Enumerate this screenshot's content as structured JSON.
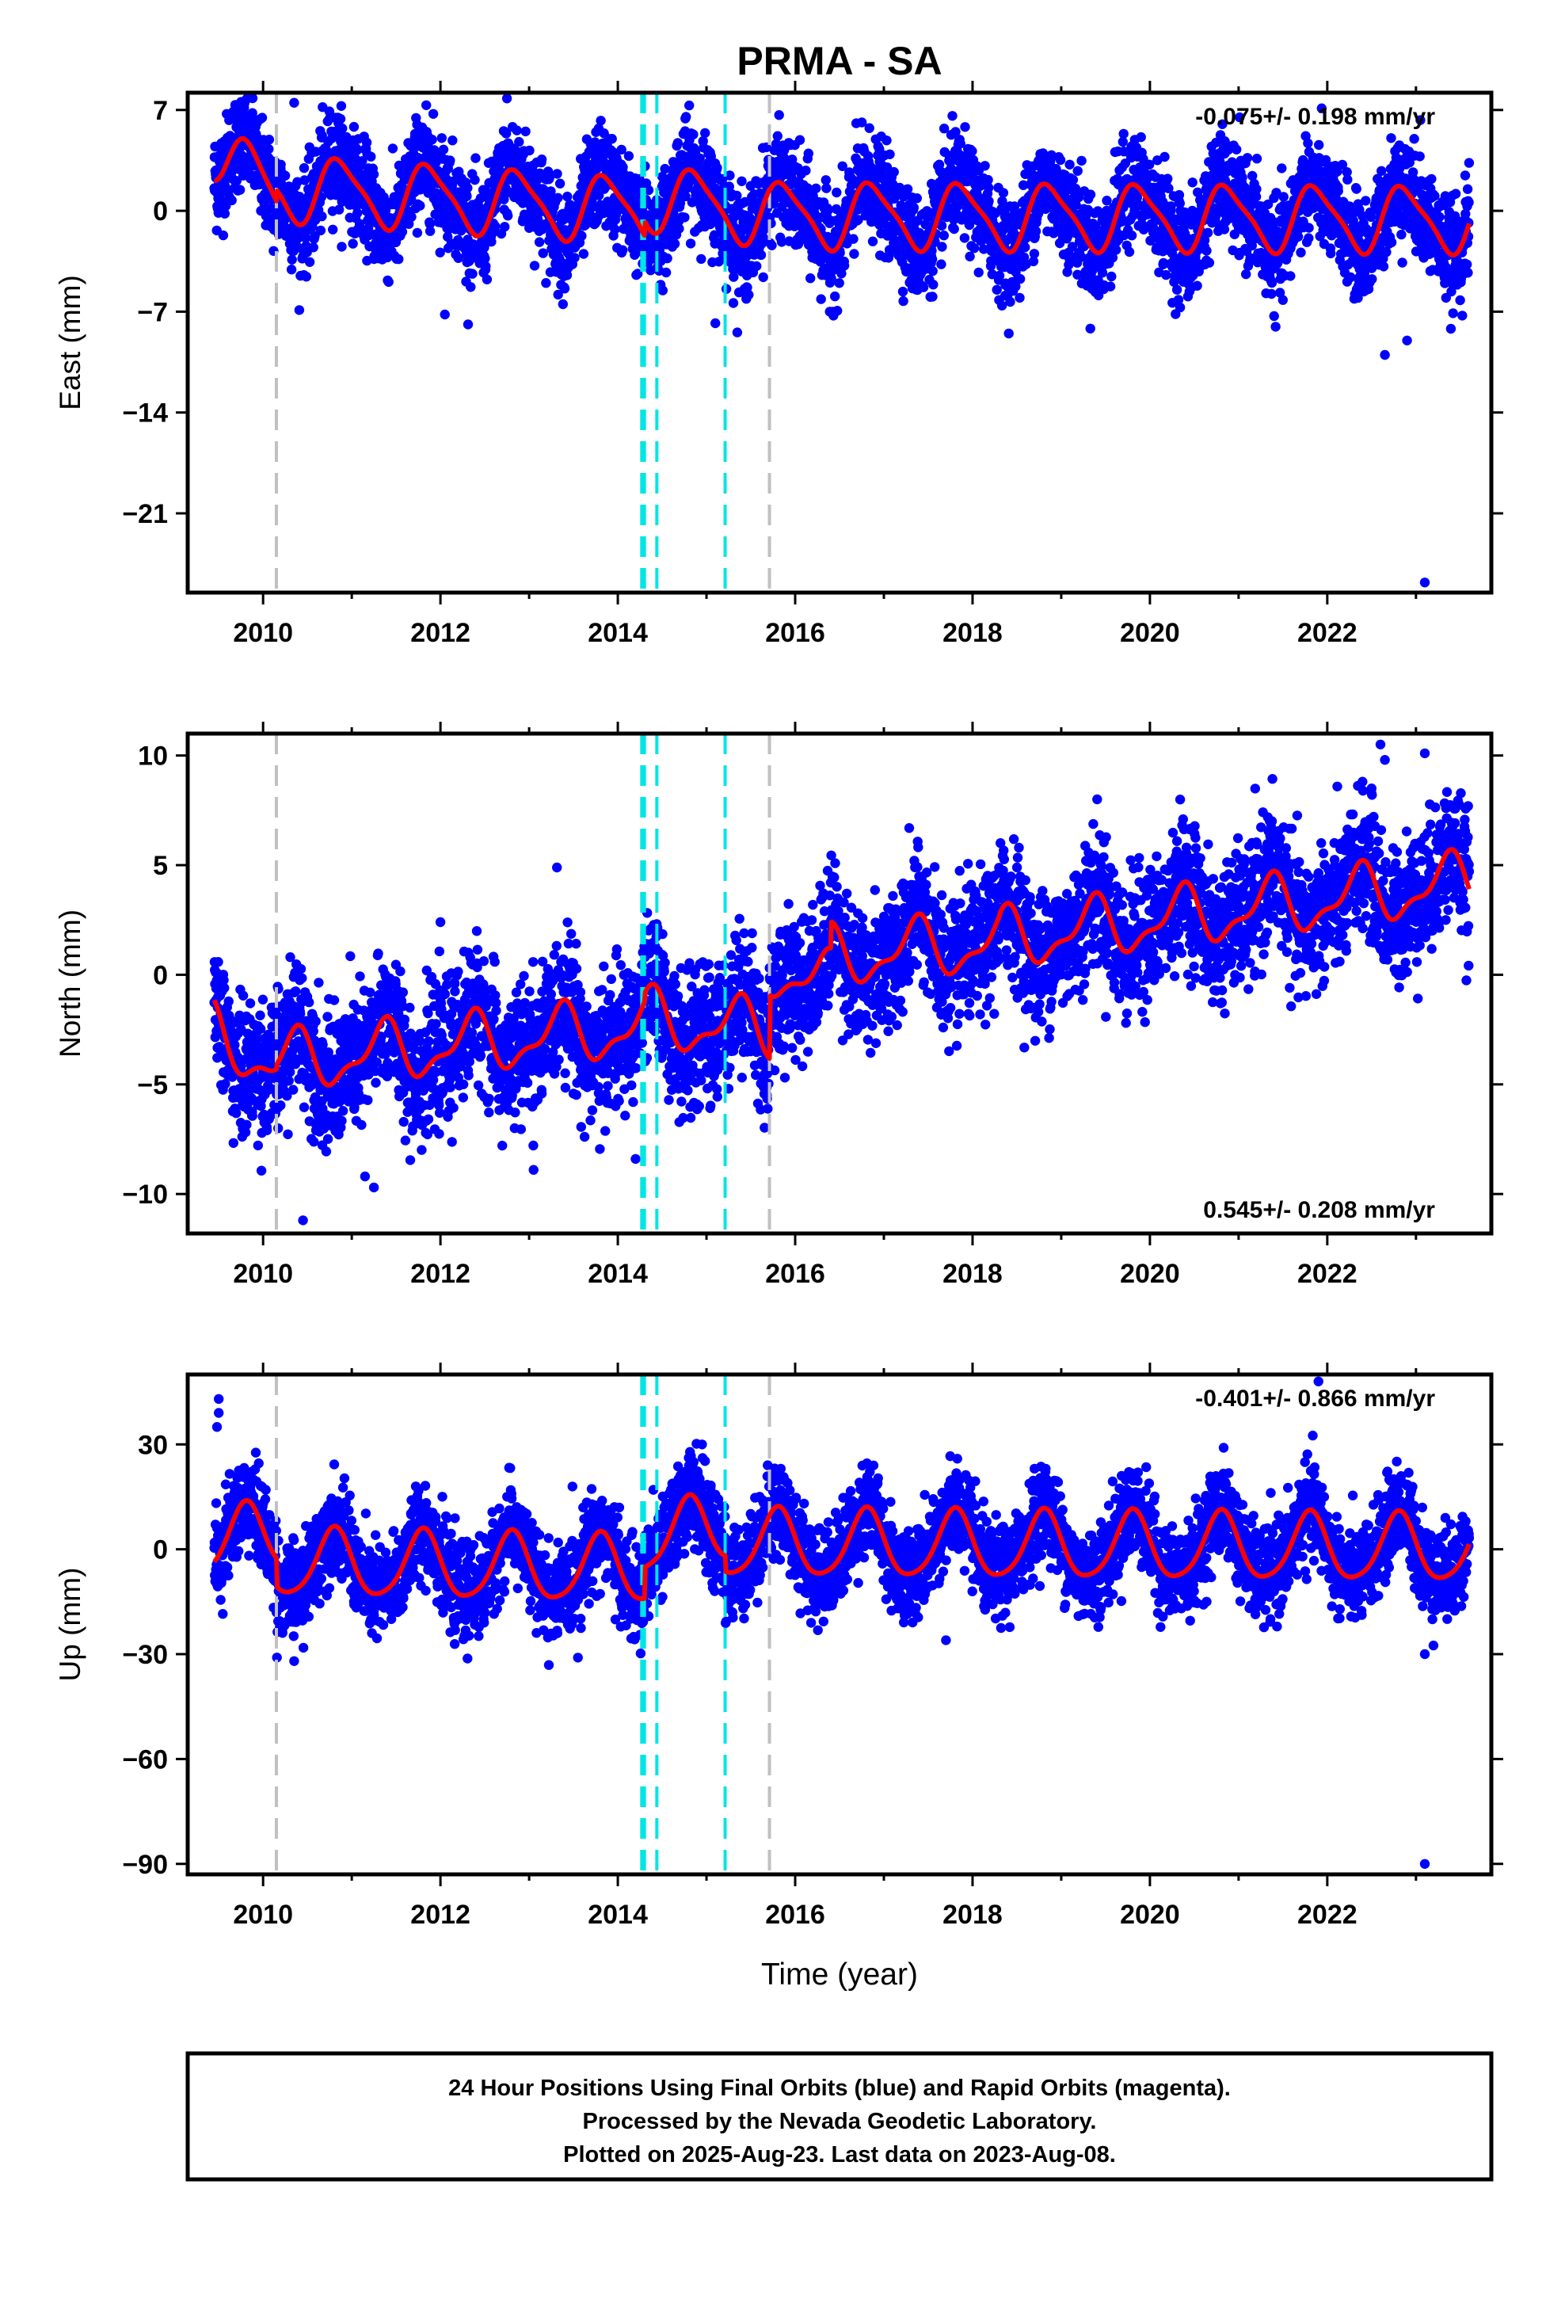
{
  "chart_data": {
    "title": "PRMA - SA",
    "type": "scatter",
    "xlabel": "Time (year)",
    "xlim": [
      2009.15,
      2023.85
    ],
    "xticks": [
      2010,
      2012,
      2014,
      2016,
      2018,
      2020,
      2022
    ],
    "colors": {
      "points": "#0000ff",
      "model": "#ff0000",
      "equipment": "#00e5e5",
      "other": "#c0c0c0"
    },
    "vertical_lines": [
      {
        "x": 2010.15,
        "color": "#c0c0c0"
      },
      {
        "x": 2014.27,
        "color": "#00e5e5"
      },
      {
        "x": 2014.3,
        "color": "#00e5e5"
      },
      {
        "x": 2014.44,
        "color": "#00e5e5"
      },
      {
        "x": 2015.21,
        "color": "#00e5e5"
      },
      {
        "x": 2015.71,
        "color": "#c0c0c0"
      }
    ],
    "panels": [
      {
        "name": "east",
        "ylabel": "East (mm)",
        "ylim": [
          -26.5,
          8.2
        ],
        "yticks": [
          7,
          0,
          -7,
          -14,
          -21
        ],
        "ytick_labels": [
          "7",
          "0",
          "−7",
          "−14",
          "−21"
        ],
        "rate_text": "-0.075+/- 0.198 mm/yr",
        "rate_position": "top-right",
        "model": {
          "mean_segments": [
            {
              "from": 2009.45,
              "to": 2010.15,
              "start": 4.5,
              "end": 0.8
            },
            {
              "from": 2010.15,
              "to": 2014.3,
              "start": 1.6,
              "end": 0.0
            },
            {
              "from": 2014.3,
              "to": 2015.71,
              "start": 1.0,
              "end": -0.2
            },
            {
              "from": 2015.71,
              "to": 2023.6,
              "start": -0.3,
              "end": -0.6
            }
          ],
          "amp1": 2.2,
          "phase1": 0.62,
          "amp2": 0.5,
          "phase2": 0.1
        },
        "scatter_sigma": 1.7,
        "outliers": [
          {
            "x": 2010.35,
            "y": 7.5
          },
          {
            "x": 2012.05,
            "y": -7.2
          },
          {
            "x": 2012.75,
            "y": 7.8
          },
          {
            "x": 2015.1,
            "y": -7.8
          },
          {
            "x": 2022.65,
            "y": -10.0
          },
          {
            "x": 2022.9,
            "y": -9.0
          },
          {
            "x": 2023.1,
            "y": -25.8
          },
          {
            "x": 2023.05,
            "y": 6.3
          }
        ]
      },
      {
        "name": "north",
        "ylabel": "North (mm)",
        "ylim": [
          -11.8,
          11.0
        ],
        "yticks": [
          10,
          5,
          0,
          -5,
          -10
        ],
        "ytick_labels": [
          "10",
          "5",
          "0",
          "−5",
          "−10"
        ],
        "rate_text": "0.545+/- 0.208 mm/yr",
        "rate_position": "bottom-right",
        "model": {
          "mean_segments": [
            {
              "from": 2009.45,
              "to": 2010.15,
              "start": -2.6,
              "end": -4.2
            },
            {
              "from": 2010.15,
              "to": 2014.3,
              "start": -4.0,
              "end": -2.4
            },
            {
              "from": 2014.3,
              "to": 2015.71,
              "start": -2.0,
              "end": -2.6
            },
            {
              "from": 2015.71,
              "to": 2016.4,
              "start": 0.3,
              "end": -0.4
            },
            {
              "from": 2016.4,
              "to": 2018.3,
              "start": 0.8,
              "end": 1.5
            },
            {
              "from": 2018.3,
              "to": 2023.6,
              "start": 1.6,
              "end": 4.2
            }
          ],
          "amp1": 1.2,
          "phase1": 0.1,
          "amp2": 0.5,
          "phase2": 0.3
        },
        "scatter_sigma": 1.5,
        "outliers": [
          {
            "x": 2010.45,
            "y": -11.2
          },
          {
            "x": 2011.25,
            "y": -9.7
          },
          {
            "x": 2011.15,
            "y": -9.2
          },
          {
            "x": 2012.0,
            "y": 2.4
          },
          {
            "x": 2013.05,
            "y": -8.9
          },
          {
            "x": 2014.2,
            "y": -8.4
          },
          {
            "x": 2022.6,
            "y": 10.5
          },
          {
            "x": 2022.65,
            "y": 9.8
          },
          {
            "x": 2023.1,
            "y": 10.1
          },
          {
            "x": 2022.5,
            "y": 8.5
          }
        ]
      },
      {
        "name": "up",
        "ylabel": "Up (mm)",
        "ylim": [
          -93,
          50
        ],
        "yticks": [
          30,
          0,
          -30,
          -60,
          -90
        ],
        "ytick_labels": [
          "30",
          "0",
          "−30",
          "−60",
          "−90"
        ],
        "rate_text": "-0.401+/- 0.866 mm/yr",
        "rate_position": "top-right",
        "model": {
          "mean_segments": [
            {
              "from": 2009.45,
              "to": 2010.15,
              "start": 2.0,
              "end": 4.0
            },
            {
              "from": 2010.15,
              "to": 2014.3,
              "start": -4.0,
              "end": -6.0
            },
            {
              "from": 2014.3,
              "to": 2015.21,
              "start": 3.0,
              "end": 6.0
            },
            {
              "from": 2015.21,
              "to": 2023.6,
              "start": 1.5,
              "end": 0.0
            }
          ],
          "amp1": 9.5,
          "phase1": 0.55,
          "amp2": 1.5,
          "phase2": 0.2
        },
        "scatter_sigma": 6.5,
        "outliers": [
          {
            "x": 2009.5,
            "y": 43
          },
          {
            "x": 2009.5,
            "y": 39
          },
          {
            "x": 2009.48,
            "y": 35
          },
          {
            "x": 2010.35,
            "y": -32
          },
          {
            "x": 2013.55,
            "y": -31
          },
          {
            "x": 2017.7,
            "y": -26
          },
          {
            "x": 2021.9,
            "y": 48
          },
          {
            "x": 2023.1,
            "y": -30
          },
          {
            "x": 2023.1,
            "y": -90
          },
          {
            "x": 2014.4,
            "y": 17
          },
          {
            "x": 2014.95,
            "y": 30
          }
        ]
      }
    ]
  },
  "footer": {
    "line1": "24 Hour Positions Using Final Orbits (blue) and Rapid Orbits (magenta).",
    "line2": "Processed by the Nevada Geodetic Laboratory.",
    "line3": "Plotted on 2025-Aug-23. Last data on 2023-Aug-08."
  }
}
